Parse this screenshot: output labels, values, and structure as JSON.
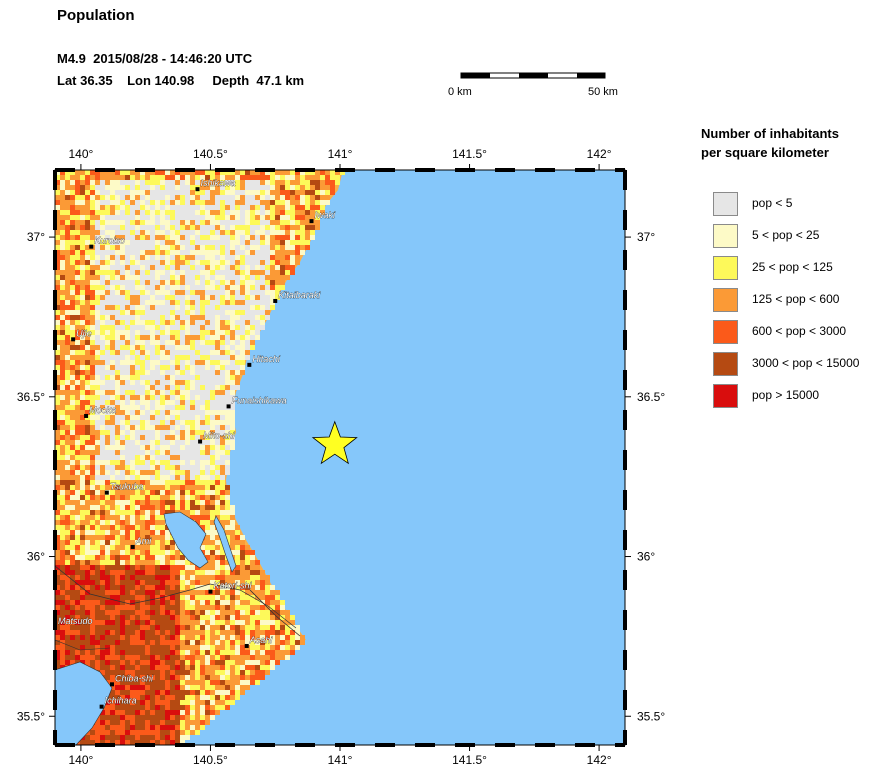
{
  "title": "Population",
  "event": {
    "line1": "M4.9  2015/08/28 - 14:46:20 UTC",
    "line2": "Lat 36.35    Lon 140.98     Depth  47.1 km",
    "lat": 36.35,
    "lon": 140.98
  },
  "scale_bar": {
    "left_label": "0 km",
    "right_label": "50 km"
  },
  "legend": {
    "title_line1": "Number of inhabitants",
    "title_line2": "per square kilometer",
    "items": [
      {
        "label": "pop < 5",
        "color": "#e6e6e6"
      },
      {
        "label": "5 < pop < 25",
        "color": "#fdfac7"
      },
      {
        "label": "25 < pop < 125",
        "color": "#fdf95a"
      },
      {
        "label": "125 < pop < 600",
        "color": "#fb9a36"
      },
      {
        "label": "600 < pop < 3000",
        "color": "#fb5a1a"
      },
      {
        "label": "3000 < pop < 15000",
        "color": "#b54a12"
      },
      {
        "label": "pop > 15000",
        "color": "#d90d0d"
      }
    ]
  },
  "map": {
    "lon_range": [
      139.9,
      142.1
    ],
    "lat_range": [
      35.41,
      37.21
    ],
    "ocean_color": "#85c7fa",
    "lon_ticks": [
      {
        "value": 140.0,
        "label": "140°"
      },
      {
        "value": 140.5,
        "label": "140.5°"
      },
      {
        "value": 141.0,
        "label": "141°"
      },
      {
        "value": 141.5,
        "label": "141.5°"
      },
      {
        "value": 142.0,
        "label": "142°"
      }
    ],
    "lat_ticks": [
      {
        "value": 37.0,
        "label": "37°"
      },
      {
        "value": 36.5,
        "label": "36.5°"
      },
      {
        "value": 36.0,
        "label": "36°"
      },
      {
        "value": 35.5,
        "label": "35.5°"
      }
    ],
    "cities": [
      {
        "name": "Ishikawa",
        "lon": 140.45,
        "lat": 37.15
      },
      {
        "name": "Iwaki",
        "lon": 140.89,
        "lat": 37.05
      },
      {
        "name": "Kuroiso",
        "lon": 140.04,
        "lat": 36.97
      },
      {
        "name": "Kitaibaraki",
        "lon": 140.75,
        "lat": 36.8
      },
      {
        "name": "Ujie",
        "lon": 139.97,
        "lat": 36.68
      },
      {
        "name": "Hitachi",
        "lon": 140.65,
        "lat": 36.6
      },
      {
        "name": "Funaishikawa",
        "lon": 140.57,
        "lat": 36.47
      },
      {
        "name": "Mooka",
        "lon": 140.02,
        "lat": 36.44
      },
      {
        "name": "Mito-shi",
        "lon": 140.46,
        "lat": 36.36
      },
      {
        "name": "Tsukuba",
        "lon": 140.1,
        "lat": 36.2
      },
      {
        "name": "Ami",
        "lon": 140.2,
        "lat": 36.03
      },
      {
        "name": "Katori-shi",
        "lon": 140.5,
        "lat": 35.89
      },
      {
        "name": "Matsudo",
        "lon": 139.9,
        "lat": 35.78
      },
      {
        "name": "Asahi",
        "lon": 140.64,
        "lat": 35.72
      },
      {
        "name": "Chiba-shi",
        "lon": 140.12,
        "lat": 35.6
      },
      {
        "name": "Ichihara",
        "lon": 140.08,
        "lat": 35.53
      }
    ]
  }
}
